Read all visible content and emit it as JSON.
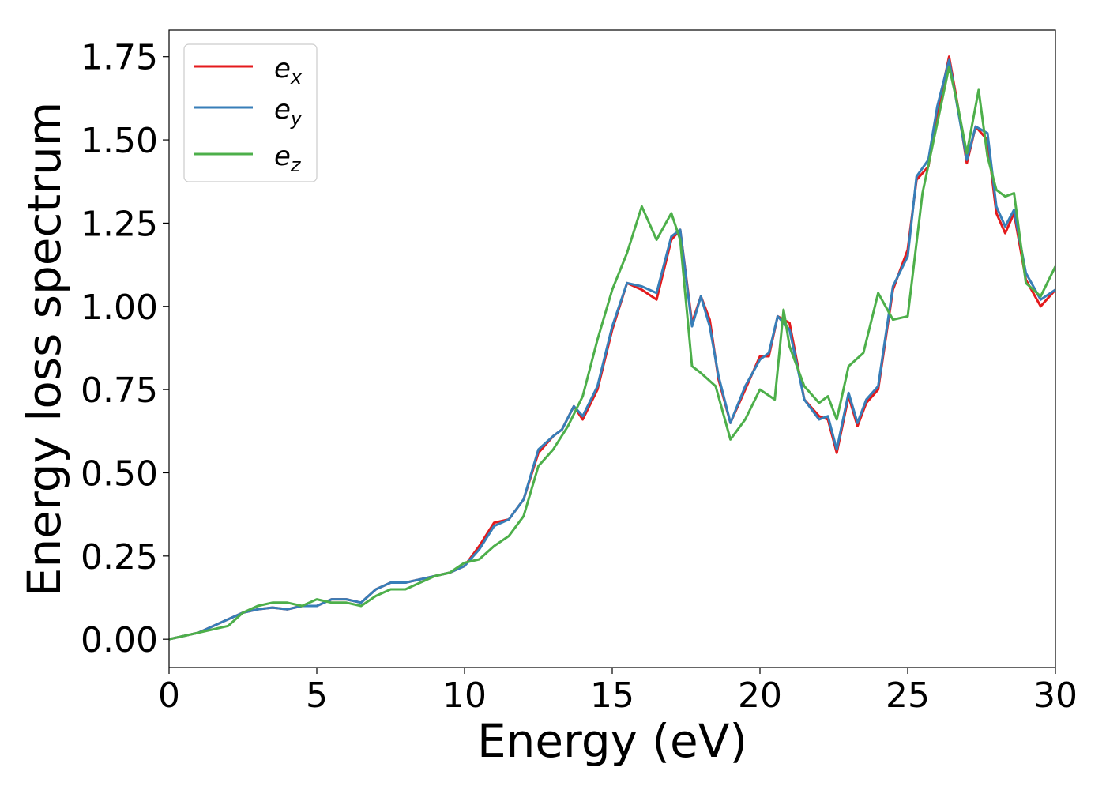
{
  "chart_data": {
    "type": "line",
    "title": "",
    "xlabel": "Energy (eV)",
    "ylabel": "Energy loss spectrum",
    "xlim": [
      0,
      30
    ],
    "ylim": [
      -0.085,
      1.83
    ],
    "xticks": [
      0,
      5,
      10,
      15,
      20,
      25,
      30
    ],
    "yticks": [
      0.0,
      0.25,
      0.5,
      0.75,
      1.0,
      1.25,
      1.5,
      1.75
    ],
    "xtick_labels": [
      "0",
      "5",
      "10",
      "15",
      "20",
      "25",
      "30"
    ],
    "ytick_labels": [
      "0.00",
      "0.25",
      "0.50",
      "0.75",
      "1.00",
      "1.25",
      "1.50",
      "1.75"
    ],
    "grid": false,
    "legend_position": "top-left",
    "series": [
      {
        "name": "e_x",
        "legend_base": "e",
        "legend_sub": "x",
        "color": "#e41a1c",
        "x": [
          0,
          1,
          2,
          2.5,
          3,
          3.5,
          4,
          4.5,
          5,
          5.5,
          6,
          6.5,
          7,
          7.5,
          8,
          8.5,
          9,
          9.5,
          10,
          10.5,
          11,
          11.5,
          12,
          12.5,
          13,
          13.3,
          13.7,
          14,
          14.5,
          15,
          15.5,
          16,
          16.5,
          17,
          17.3,
          17.7,
          18,
          18.3,
          18.6,
          19,
          19.5,
          20,
          20.3,
          20.6,
          21,
          21.5,
          22,
          22.3,
          22.6,
          23,
          23.3,
          23.6,
          24,
          24.5,
          25,
          25.3,
          25.7,
          26,
          26.4,
          26.7,
          27,
          27.3,
          27.7,
          28,
          28.3,
          28.6,
          29,
          29.5,
          30
        ],
        "y": [
          0,
          0.02,
          0.06,
          0.08,
          0.09,
          0.095,
          0.09,
          0.1,
          0.1,
          0.12,
          0.12,
          0.11,
          0.15,
          0.17,
          0.17,
          0.18,
          0.19,
          0.2,
          0.22,
          0.28,
          0.35,
          0.36,
          0.42,
          0.56,
          0.61,
          0.63,
          0.7,
          0.66,
          0.75,
          0.93,
          1.07,
          1.05,
          1.02,
          1.2,
          1.23,
          0.95,
          1.03,
          0.96,
          0.78,
          0.65,
          0.75,
          0.85,
          0.85,
          0.97,
          0.95,
          0.72,
          0.67,
          0.66,
          0.56,
          0.73,
          0.64,
          0.71,
          0.75,
          1.05,
          1.17,
          1.38,
          1.42,
          1.58,
          1.75,
          1.6,
          1.43,
          1.54,
          1.5,
          1.28,
          1.22,
          1.28,
          1.08,
          1.0,
          1.05
        ]
      },
      {
        "name": "e_y",
        "legend_base": "e",
        "legend_sub": "y",
        "color": "#377eb8",
        "x": [
          0,
          1,
          2,
          2.5,
          3,
          3.5,
          4,
          4.5,
          5,
          5.5,
          6,
          6.5,
          7,
          7.5,
          8,
          8.5,
          9,
          9.5,
          10,
          10.5,
          11,
          11.5,
          12,
          12.5,
          13,
          13.3,
          13.7,
          14,
          14.5,
          15,
          15.5,
          16,
          16.5,
          17,
          17.3,
          17.7,
          18,
          18.3,
          18.6,
          19,
          19.5,
          20,
          20.3,
          20.6,
          21,
          21.5,
          22,
          22.3,
          22.6,
          23,
          23.3,
          23.6,
          24,
          24.5,
          25,
          25.3,
          25.7,
          26,
          26.4,
          26.7,
          27,
          27.3,
          27.7,
          28,
          28.3,
          28.6,
          29,
          29.5,
          30
        ],
        "y": [
          0,
          0.02,
          0.06,
          0.08,
          0.09,
          0.095,
          0.09,
          0.1,
          0.1,
          0.12,
          0.12,
          0.11,
          0.15,
          0.17,
          0.17,
          0.18,
          0.19,
          0.2,
          0.22,
          0.27,
          0.34,
          0.36,
          0.42,
          0.57,
          0.61,
          0.63,
          0.7,
          0.67,
          0.76,
          0.94,
          1.07,
          1.06,
          1.04,
          1.21,
          1.23,
          0.94,
          1.03,
          0.94,
          0.79,
          0.65,
          0.76,
          0.84,
          0.86,
          0.97,
          0.93,
          0.72,
          0.66,
          0.67,
          0.57,
          0.74,
          0.65,
          0.72,
          0.76,
          1.06,
          1.15,
          1.39,
          1.44,
          1.6,
          1.74,
          1.59,
          1.44,
          1.54,
          1.52,
          1.3,
          1.24,
          1.29,
          1.1,
          1.02,
          1.05
        ]
      },
      {
        "name": "e_z",
        "legend_base": "e",
        "legend_sub": "z",
        "color": "#4daf4a",
        "x": [
          0,
          1,
          2,
          2.5,
          3,
          3.5,
          4,
          4.5,
          5,
          5.5,
          6,
          6.5,
          7,
          7.5,
          8,
          8.5,
          9,
          9.5,
          10,
          10.5,
          11,
          11.5,
          12,
          12.5,
          13,
          13.5,
          14,
          14.5,
          15,
          15.5,
          16,
          16.5,
          17,
          17.3,
          17.7,
          18,
          18.5,
          19,
          19.5,
          20,
          20.5,
          20.8,
          21,
          21.5,
          22,
          22.3,
          22.6,
          23,
          23.5,
          24,
          24.5,
          25,
          25.5,
          26,
          26.4,
          26.7,
          27,
          27.4,
          27.7,
          28,
          28.3,
          28.6,
          29,
          29.5,
          30
        ],
        "y": [
          0,
          0.02,
          0.04,
          0.08,
          0.1,
          0.11,
          0.11,
          0.1,
          0.12,
          0.11,
          0.11,
          0.1,
          0.13,
          0.15,
          0.15,
          0.17,
          0.19,
          0.2,
          0.23,
          0.24,
          0.28,
          0.31,
          0.37,
          0.52,
          0.57,
          0.64,
          0.73,
          0.9,
          1.05,
          1.16,
          1.3,
          1.2,
          1.28,
          1.2,
          0.82,
          0.8,
          0.76,
          0.6,
          0.66,
          0.75,
          0.72,
          0.99,
          0.88,
          0.76,
          0.71,
          0.73,
          0.66,
          0.82,
          0.86,
          1.04,
          0.96,
          0.97,
          1.34,
          1.55,
          1.72,
          1.6,
          1.46,
          1.65,
          1.45,
          1.35,
          1.33,
          1.34,
          1.07,
          1.03,
          1.12
        ]
      }
    ]
  }
}
